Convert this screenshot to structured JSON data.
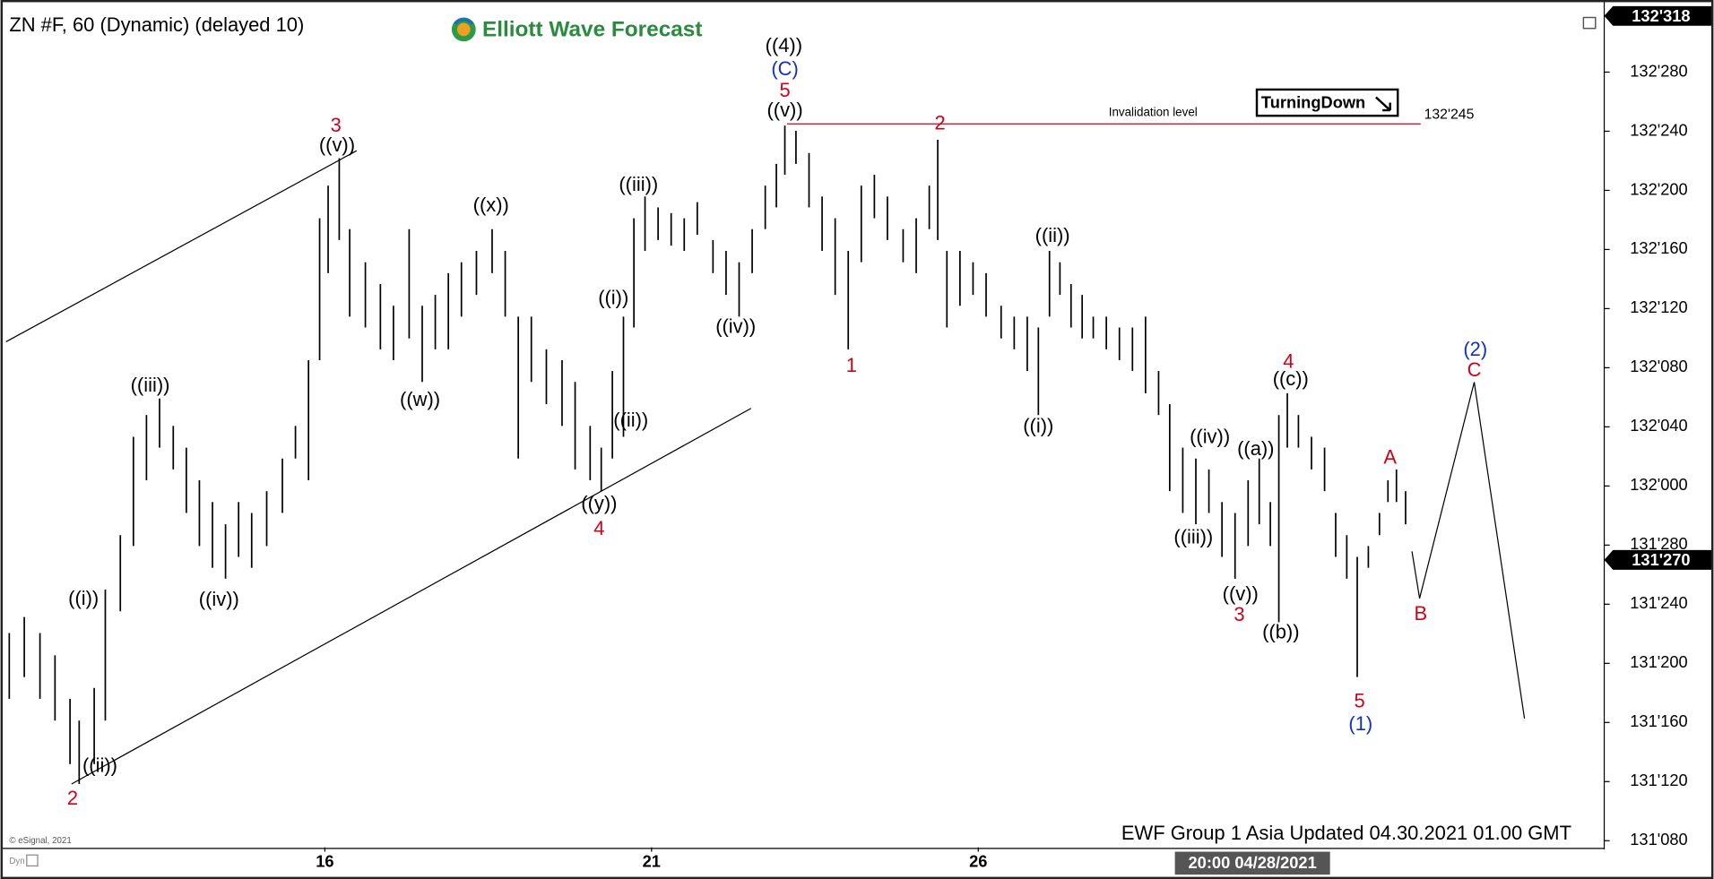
{
  "chart_data": {
    "type": "ohlc",
    "title": "ZN #F, 60 (Dynamic) (delayed 10)",
    "watermark": "Elliott Wave Forecast",
    "badge": "TurningDown",
    "footer": "EWF Group 1 Asia Updated 04.30.2021 01.00 GMT",
    "crosshair_label": "20:00 04/28/2021",
    "copyright": "© eSignal, 2021",
    "corner_label": "Dyn",
    "color": "#000000",
    "x": [
      11.17,
      11.4,
      11.64,
      11.87,
      12.1,
      12.24,
      12.47,
      12.64,
      12.87,
      13.07,
      13.27,
      13.47,
      13.68,
      13.88,
      14.08,
      14.28,
      14.48,
      14.68,
      14.88,
      15.11,
      15.35,
      15.55,
      15.75,
      15.92,
      16.05,
      16.22,
      16.38,
      16.62,
      16.85,
      17.05,
      17.29,
      17.49,
      17.69,
      17.89,
      18.09,
      18.32,
      18.56,
      18.76,
      18.96,
      19.16,
      19.39,
      19.63,
      19.83,
      20.06,
      20.23,
      20.4,
      20.57,
      20.73,
      20.9,
      21.1,
      21.3,
      21.5,
      21.7,
      21.94,
      22.14,
      22.34,
      22.54,
      22.74,
      22.91,
      23.04,
      23.21,
      23.41,
      23.61,
      23.81,
      24.01,
      24.21,
      24.41,
      24.61,
      24.85,
      25.05,
      25.25,
      25.38,
      25.52,
      25.72,
      25.92,
      26.12,
      26.35,
      26.55,
      26.75,
      26.92,
      27.09,
      27.25,
      27.42,
      27.59,
      27.76,
      27.96,
      28.16,
      28.36,
      28.56,
      28.76,
      28.93,
      29.13,
      29.33,
      29.53,
      29.73,
      29.93,
      30.13,
      30.3,
      30.47,
      30.6,
      30.73,
      30.9,
      31.1,
      31.3,
      31.47,
      31.64,
      31.8,
      31.97,
      32.14,
      32.27,
      32.4,
      32.54
    ],
    "high": [
      131.689,
      131.723,
      131.689,
      131.642,
      131.55,
      131.504,
      131.573,
      131.781,
      131.896,
      132.104,
      132.15,
      132.185,
      132.127,
      132.081,
      132.012,
      131.966,
      131.919,
      131.966,
      131.943,
      131.989,
      132.058,
      132.127,
      132.266,
      132.566,
      132.635,
      132.693,
      132.543,
      132.473,
      132.427,
      132.381,
      132.543,
      132.381,
      132.404,
      132.45,
      132.473,
      132.497,
      132.543,
      132.497,
      132.358,
      132.358,
      132.289,
      132.266,
      132.22,
      132.127,
      132.081,
      132.243,
      132.358,
      132.566,
      132.612,
      132.589,
      132.577,
      132.566,
      132.6,
      132.52,
      132.497,
      132.473,
      132.543,
      132.635,
      132.681,
      132.762,
      132.751,
      132.704,
      132.612,
      132.566,
      132.497,
      132.635,
      132.658,
      132.612,
      132.543,
      132.566,
      132.635,
      132.732,
      132.497,
      132.497,
      132.473,
      132.45,
      132.381,
      132.358,
      132.358,
      132.335,
      132.497,
      132.473,
      132.427,
      132.404,
      132.358,
      132.358,
      132.335,
      132.335,
      132.358,
      132.243,
      132.173,
      132.081,
      132.058,
      132.035,
      131.966,
      131.943,
      132.012,
      132.058,
      131.966,
      132.15,
      132.196,
      132.15,
      132.104,
      132.081,
      131.943,
      131.896,
      131.85,
      131.873,
      131.943,
      132.012,
      132.035,
      131.989
    ],
    "low": [
      131.55,
      131.596,
      131.55,
      131.504,
      131.412,
      131.37,
      131.412,
      131.504,
      131.735,
      131.873,
      132.012,
      132.081,
      132.035,
      131.943,
      131.873,
      131.827,
      131.804,
      131.85,
      131.827,
      131.873,
      131.943,
      132.058,
      132.012,
      132.266,
      132.45,
      132.52,
      132.358,
      132.335,
      132.289,
      132.266,
      132.312,
      132.22,
      132.289,
      132.289,
      132.358,
      132.404,
      132.45,
      132.358,
      132.058,
      132.22,
      132.173,
      132.127,
      132.035,
      132.012,
      131.989,
      132.058,
      132.104,
      132.335,
      132.497,
      132.52,
      132.508,
      132.497,
      132.531,
      132.45,
      132.404,
      132.358,
      132.45,
      132.543,
      132.589,
      132.658,
      132.681,
      132.589,
      132.497,
      132.404,
      132.289,
      132.473,
      132.566,
      132.52,
      132.473,
      132.45,
      132.543,
      132.52,
      132.335,
      132.381,
      132.404,
      132.358,
      132.312,
      132.289,
      132.243,
      132.15,
      132.358,
      132.404,
      132.335,
      132.312,
      132.312,
      132.289,
      132.266,
      132.243,
      132.196,
      132.15,
      131.989,
      131.943,
      131.919,
      131.943,
      131.85,
      131.804,
      131.873,
      131.919,
      131.873,
      131.712,
      132.081,
      132.081,
      132.035,
      131.989,
      131.85,
      131.804,
      131.596,
      131.827,
      131.896,
      131.966,
      131.966,
      131.919
    ],
    "xlim": [
      11.12,
      35.58
    ],
    "xticks": [
      16,
      21,
      26
    ],
    "ylim": [
      131.236,
      133.009
    ],
    "yticks": [
      {
        "value": 131.25,
        "label": "131'080"
      },
      {
        "value": 131.375,
        "label": "131'120"
      },
      {
        "value": 131.5,
        "label": "131'160"
      },
      {
        "value": 131.625,
        "label": "131'200"
      },
      {
        "value": 131.75,
        "label": "131'240"
      },
      {
        "value": 131.875,
        "label": "131'280"
      },
      {
        "value": 132,
        "label": "132'000"
      },
      {
        "value": 132.125,
        "label": "132'040"
      },
      {
        "value": 132.25,
        "label": "132'080"
      },
      {
        "value": 132.375,
        "label": "132'120"
      },
      {
        "value": 132.5,
        "label": "132'160"
      },
      {
        "value": 132.625,
        "label": "132'200"
      },
      {
        "value": 132.75,
        "label": "132'240"
      },
      {
        "value": 132.875,
        "label": "132'280"
      }
    ],
    "top_price": {
      "value": 132.99375,
      "label": "132'318"
    },
    "last_price": {
      "value": 131.84375,
      "label": "131'270"
    },
    "invalidation": {
      "value": 132.765625,
      "label": "132'245",
      "text": "Invalidation level"
    },
    "annotations": [
      "((4))",
      "(C)",
      "5",
      "((v))",
      "3",
      "((v))",
      "((x))",
      "((iii))",
      "((i))",
      "((ii))",
      "((iv))",
      "((w))",
      "((y))",
      "4",
      "((iii))",
      "((iv))",
      "((i))",
      "((ii))",
      "2",
      "2",
      "1",
      "((ii))",
      "((i))",
      "((iv))",
      "((iii))",
      "((v))",
      "3",
      "((a))",
      "((b))",
      "4",
      "((c))",
      "5",
      "(1)",
      "A",
      "B",
      "C",
      "(2)"
    ]
  }
}
